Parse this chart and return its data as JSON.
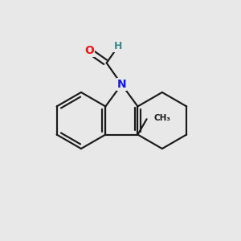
{
  "background_color": "#e8e8e8",
  "bond_color": "#1a1a1a",
  "N_color": "#1515ee",
  "O_color": "#ee1515",
  "H_color": "#3a8a8a",
  "lw": 1.55,
  "figsize": [
    3.0,
    3.0
  ],
  "dpi": 100,
  "xlim": [
    -0.5,
    9.5
  ],
  "ylim": [
    -0.5,
    9.5
  ],
  "font_size_atom": 10,
  "font_size_CH3": 7.5
}
